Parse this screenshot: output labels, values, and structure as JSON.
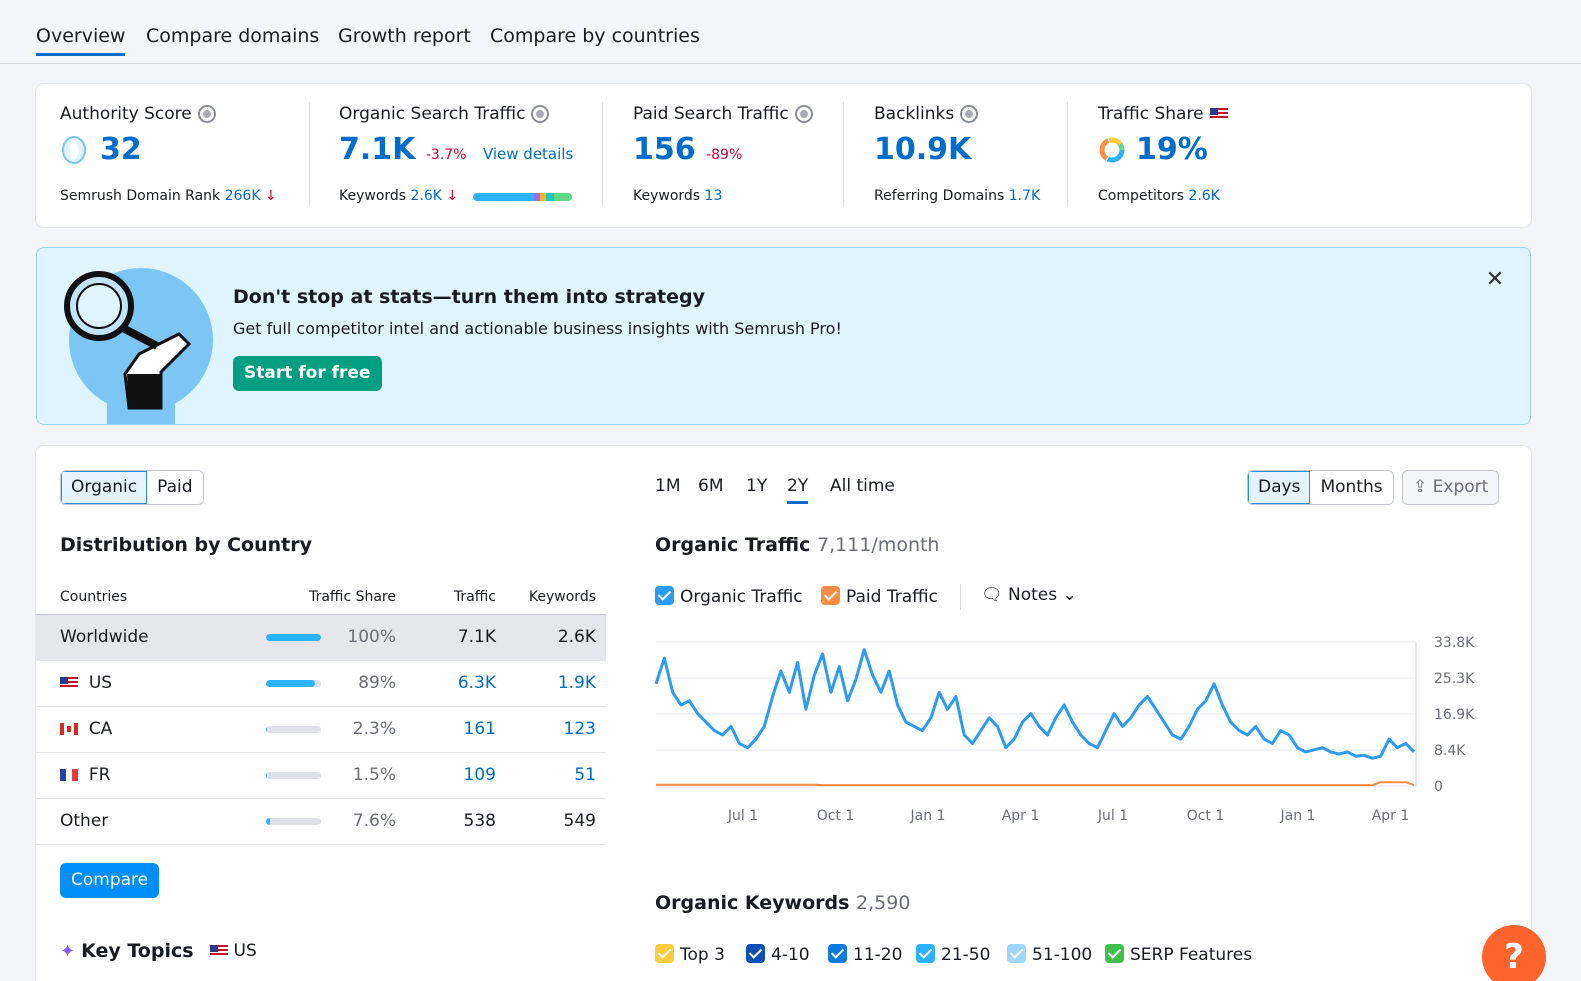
{
  "tabs": [
    {
      "label": "Overview",
      "active": true
    },
    {
      "label": "Compare domains"
    },
    {
      "label": "Growth report"
    },
    {
      "label": "Compare by countries"
    }
  ],
  "summary": {
    "authority": {
      "title": "Authority Score",
      "value": "32",
      "sub_label": "Semrush Domain Rank",
      "sub_value": "266K"
    },
    "organic": {
      "title": "Organic Search Traffic",
      "value": "7.1K",
      "change": "-3.7%",
      "link": "View details",
      "sub_label": "Keywords",
      "sub_value": "2.6K"
    },
    "paid": {
      "title": "Paid Search Traffic",
      "value": "156",
      "change": "-89%",
      "sub_label": "Keywords",
      "sub_value": "13"
    },
    "backlinks": {
      "title": "Backlinks",
      "value": "10.9K",
      "sub_label": "Referring Domains",
      "sub_value": "1.7K"
    },
    "share": {
      "title": "Traffic Share",
      "value": "19%",
      "sub_label": "Competitors",
      "sub_value": "2.6K"
    }
  },
  "banner": {
    "title": "Don't stop at stats—turn them into strategy",
    "text": "Get full competitor intel and actionable business insights with Semrush Pro!",
    "button": "Start for free",
    "close": "✕"
  },
  "left": {
    "segment": [
      "Organic",
      "Paid"
    ],
    "title": "Distribution by Country",
    "columns": [
      "Countries",
      "Traffic Share",
      "Traffic",
      "Keywords"
    ],
    "rows": [
      {
        "country": "Worldwide",
        "share": "100%",
        "share_frac": 1.0,
        "traffic": "7.1K",
        "keywords": "2.6K"
      },
      {
        "country": "US",
        "share": "89%",
        "share_frac": 0.89,
        "traffic": "6.3K",
        "keywords": "1.9K"
      },
      {
        "country": "CA",
        "share": "2.3%",
        "share_frac": 0.023,
        "traffic": "161",
        "keywords": "123"
      },
      {
        "country": "FR",
        "share": "1.5%",
        "share_frac": 0.015,
        "traffic": "109",
        "keywords": "51"
      },
      {
        "country": "Other",
        "share": "7.6%",
        "share_frac": 0.076,
        "traffic": "538",
        "keywords": "549"
      }
    ],
    "compare_button": "Compare",
    "key_topics": "Key Topics",
    "key_topics_country": "US"
  },
  "right": {
    "ranges": [
      "1M",
      "6M",
      "1Y",
      "2Y",
      "All time"
    ],
    "selected_range": "2Y",
    "granularity": [
      "Days",
      "Months"
    ],
    "export": "Export",
    "chart_title": "Organic Traffic",
    "chart_subtitle": "7,111/month",
    "legend": [
      "Organic Traffic",
      "Paid Traffic"
    ],
    "notes": "Notes",
    "keywords_title": "Organic Keywords",
    "keywords_count": "2,590",
    "kw_legend": [
      "Top 3",
      "4-10",
      "11-20",
      "21-50",
      "51-100",
      "SERP Features"
    ]
  },
  "colors": {
    "accent": "#006dca",
    "organic": "#2b9cf2",
    "paid": "#ff8c43",
    "cta": "#009f81"
  },
  "chart_data": {
    "type": "line",
    "x_ticks": [
      "Jul 1",
      "Oct 1",
      "Jan 1",
      "Apr 1",
      "Jul 1",
      "Oct 1",
      "Jan 1",
      "Apr 1"
    ],
    "y_ticks": [
      "33.8K",
      "25.3K",
      "16.9K",
      "8.4K",
      "0"
    ],
    "ylim": [
      0,
      33800
    ],
    "series": [
      {
        "name": "Organic Traffic",
        "values": [
          24000,
          30000,
          22000,
          19000,
          20000,
          17000,
          15000,
          13000,
          12000,
          14000,
          10000,
          9000,
          11000,
          14000,
          21000,
          27000,
          22000,
          29000,
          18000,
          26000,
          31000,
          22000,
          28000,
          20000,
          25000,
          32000,
          26000,
          22000,
          27000,
          19000,
          15000,
          14000,
          13000,
          16000,
          22000,
          18000,
          21000,
          12000,
          10000,
          13000,
          16000,
          14000,
          9000,
          11000,
          15000,
          17000,
          14000,
          12000,
          16000,
          19000,
          15000,
          12000,
          10000,
          9000,
          13000,
          17000,
          14000,
          16000,
          19000,
          21000,
          18000,
          15000,
          12000,
          11000,
          14000,
          18000,
          20000,
          24000,
          19000,
          15000,
          13000,
          12000,
          14000,
          11000,
          10000,
          13000,
          12000,
          9000,
          8000,
          8500,
          9000,
          8000,
          7500,
          8000,
          7000,
          7200,
          6500,
          7000,
          11000,
          9000,
          10000,
          8000
        ]
      },
      {
        "name": "Paid Traffic",
        "values": [
          300,
          300,
          300,
          300,
          300,
          300,
          300,
          300,
          300,
          300,
          300,
          300,
          300,
          300,
          300,
          300,
          300,
          300,
          300,
          300,
          200,
          200,
          200,
          200,
          200,
          200,
          200,
          200,
          200,
          200,
          200,
          200,
          200,
          200,
          200,
          200,
          200,
          200,
          200,
          200,
          200,
          200,
          200,
          200,
          200,
          200,
          200,
          200,
          200,
          200,
          200,
          200,
          200,
          200,
          200,
          200,
          200,
          200,
          200,
          200,
          200,
          200,
          200,
          200,
          200,
          200,
          200,
          200,
          200,
          200,
          200,
          200,
          200,
          200,
          200,
          200,
          200,
          200,
          200,
          200,
          200,
          200,
          200,
          200,
          200,
          200,
          200,
          900,
          900,
          900,
          900,
          200
        ]
      }
    ]
  }
}
